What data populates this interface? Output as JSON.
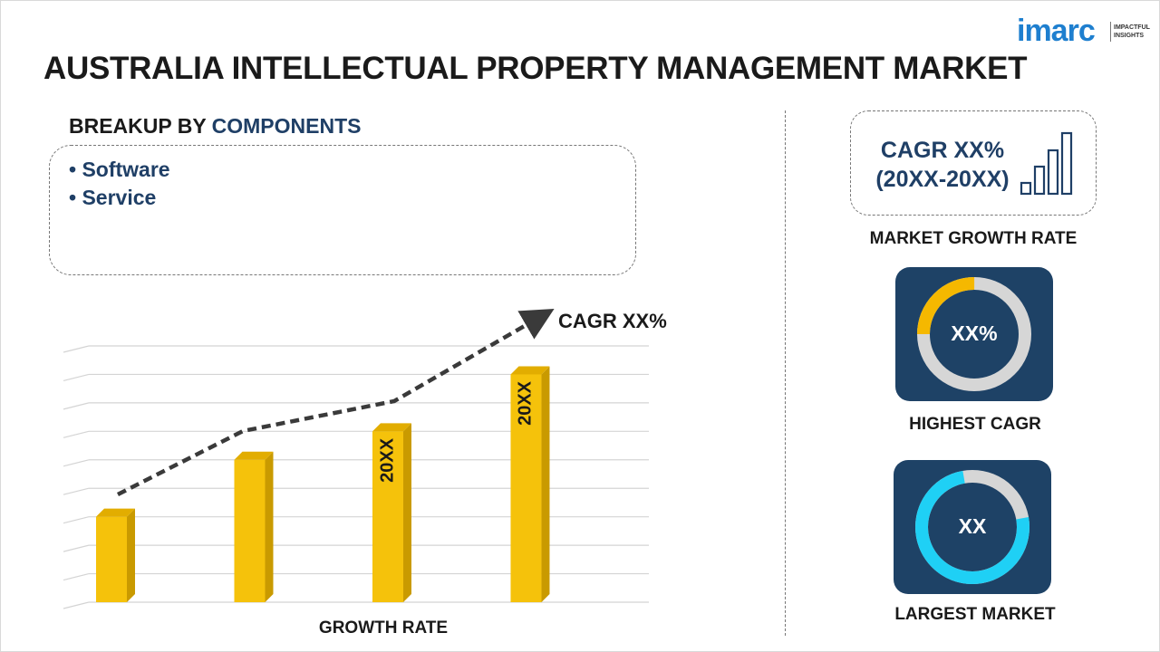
{
  "brand": {
    "name": "imarc",
    "tagline": "IMPACTFUL INSIGHTS"
  },
  "title": "AUSTRALIA INTELLECTUAL PROPERTY MANAGEMENT MARKET",
  "breakup": {
    "prefix": "BREAKUP BY ",
    "highlight": "COMPONENTS",
    "items": [
      "Software",
      "Service"
    ]
  },
  "growth": {
    "cagr_label": "CAGR XX%",
    "x_label": "GROWTH RATE"
  },
  "chart_data": {
    "type": "bar",
    "categories": [
      "",
      "",
      "20XX",
      "20XX"
    ],
    "values": [
      3,
      5,
      6,
      8
    ],
    "xlabel": "GROWTH RATE",
    "ylabel": "",
    "ylim": [
      0,
      9
    ],
    "trend_label": "CAGR XX%",
    "grid": true
  },
  "kpis": {
    "cagr": {
      "line1": "CAGR XX%",
      "line2": "(20XX-20XX)",
      "label": "MARKET GROWTH RATE"
    },
    "highest_cagr": {
      "value": "XX%",
      "label": "HIGHEST CAGR",
      "fraction": 0.25
    },
    "largest_market": {
      "value": "XX",
      "label": "LARGEST MARKET",
      "fraction": 0.75
    }
  },
  "colors": {
    "bar_front": "#f5c20b",
    "bar_side": "#c99a00",
    "bar_top": "#e2ad00",
    "navy": "#1e4266",
    "accent_yellow": "#f5b800",
    "accent_cyan": "#1fd0f5",
    "ring_gray": "#d6d6d6"
  }
}
